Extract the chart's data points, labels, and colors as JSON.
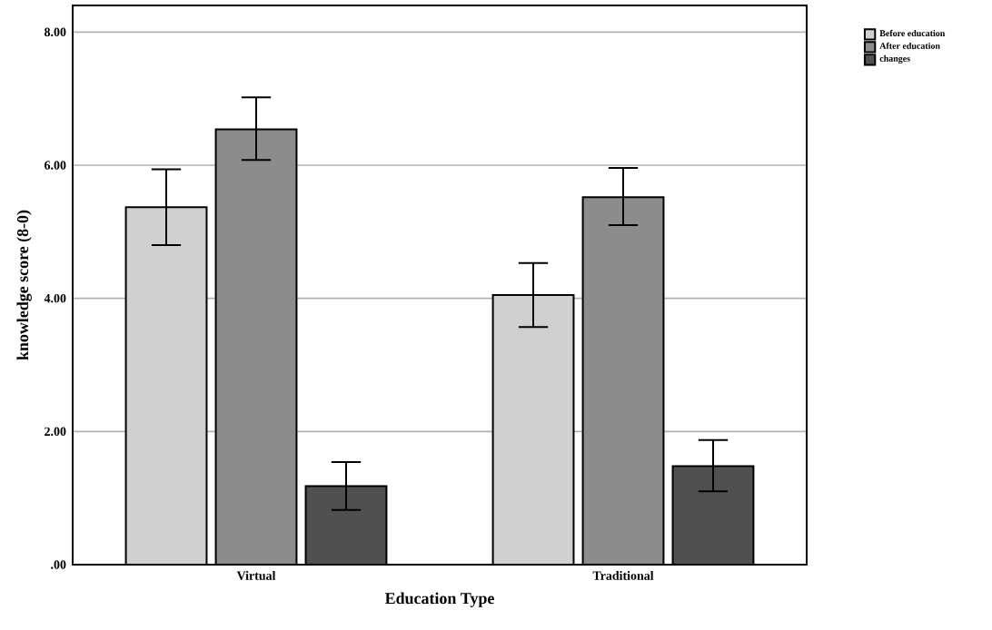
{
  "chart_data": {
    "type": "bar",
    "xlabel": "Education Type",
    "ylabel": "knowledge score  (8-0)",
    "categories": [
      "Virtual",
      "Traditional"
    ],
    "series": [
      {
        "name": "Before education",
        "color": "#d0d0d0",
        "values": [
          5.37,
          4.05
        ],
        "errors": [
          [
            4.8,
            5.94
          ],
          [
            3.57,
            4.53
          ]
        ]
      },
      {
        "name": "After education",
        "color": "#8c8c8c",
        "values": [
          6.54,
          5.52
        ],
        "errors": [
          [
            6.08,
            7.02
          ],
          [
            5.1,
            5.96
          ]
        ]
      },
      {
        "name": "changes",
        "color": "#505050",
        "values": [
          1.18,
          1.48
        ],
        "errors": [
          [
            0.82,
            1.54
          ],
          [
            1.1,
            1.87
          ]
        ]
      }
    ],
    "ylim": [
      0,
      8.4
    ],
    "yticks": [
      {
        "value": 0,
        "label": ".00"
      },
      {
        "value": 2,
        "label": "2.00"
      },
      {
        "value": 4,
        "label": "4.00"
      },
      {
        "value": 6,
        "label": "6.00"
      },
      {
        "value": 8,
        "label": "8.00"
      }
    ],
    "grid": "y",
    "legend": "top right"
  }
}
